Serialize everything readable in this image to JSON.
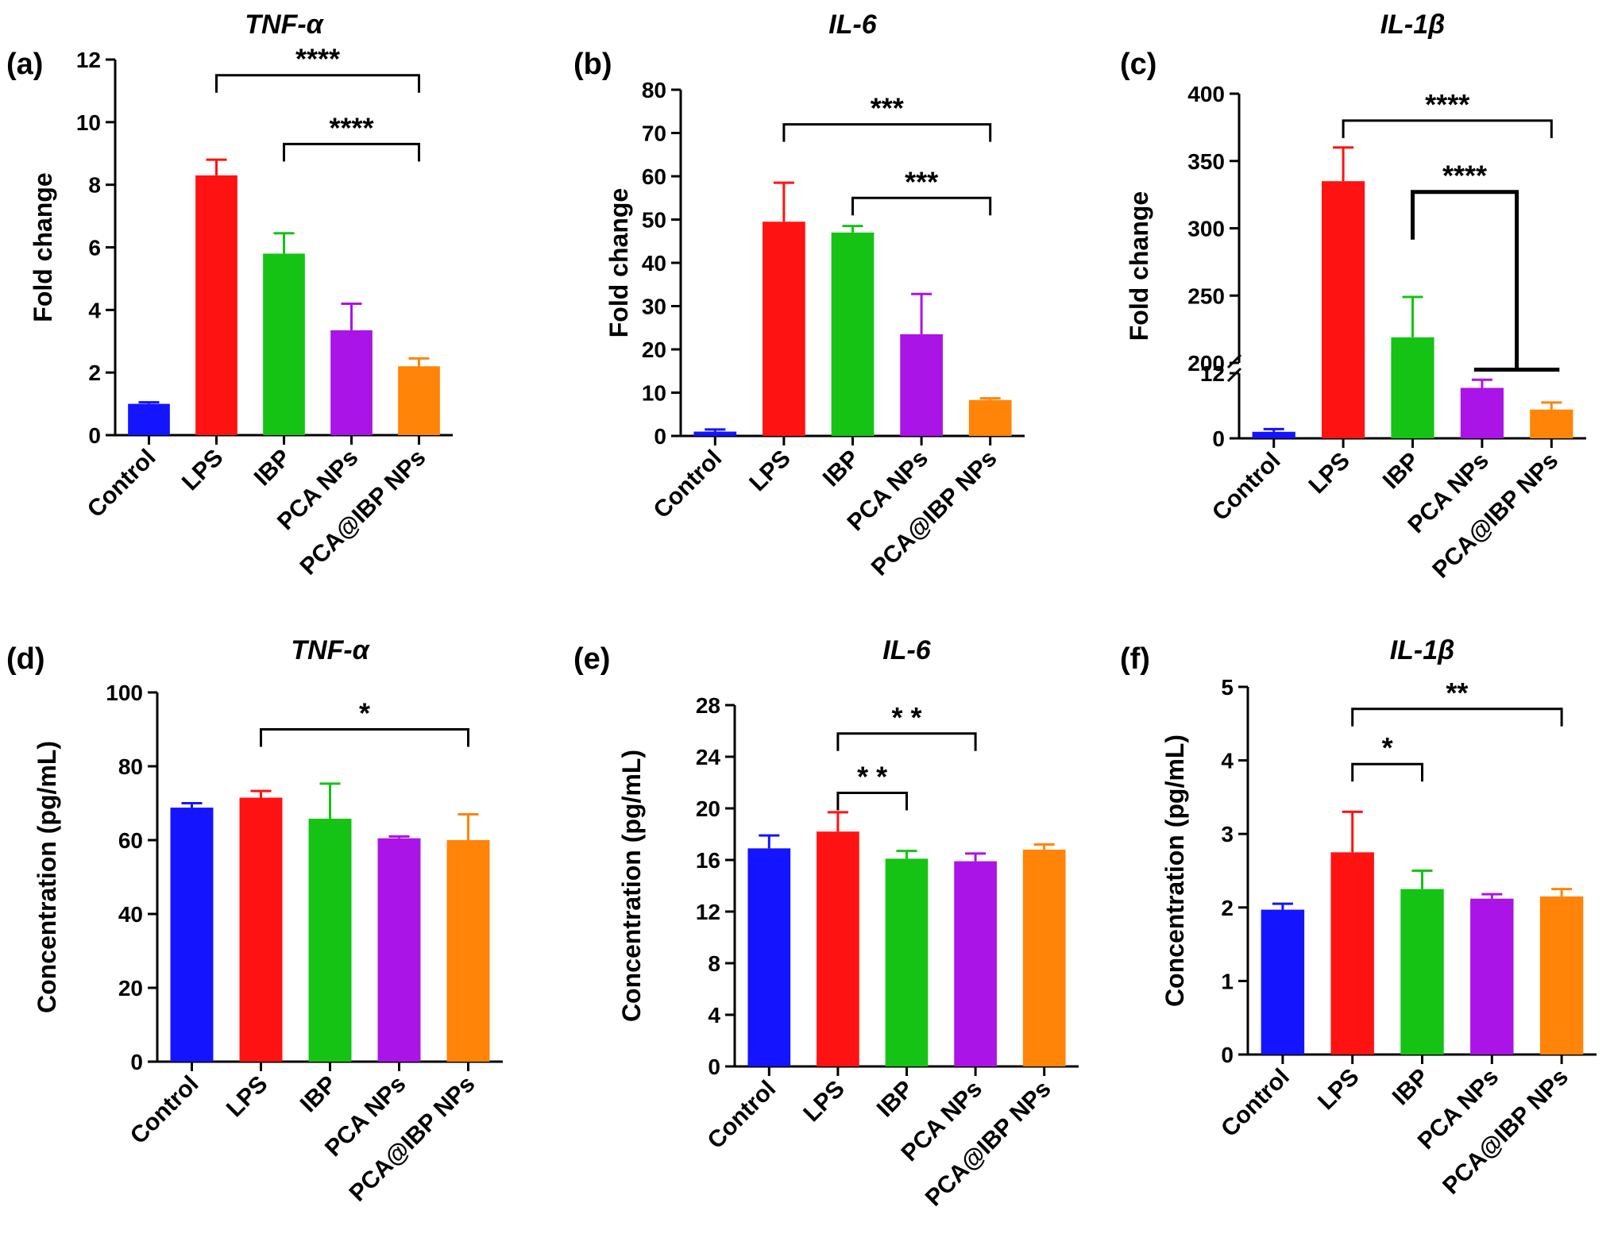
{
  "figure": {
    "colors": {
      "Control": "#1414ff",
      "LPS": "#ff1212",
      "IBP": "#15c315",
      "PCA NPs": "#aa14e6",
      "PCA@IBP NPs": "#ff8407"
    }
  },
  "chart_data": [
    {
      "type": "bar",
      "panel_label": "(a)",
      "title": "TNF-α",
      "xlabel": "",
      "ylabel": "Fold change",
      "categories": [
        "Control",
        "LPS",
        "IBP",
        "PCA NPs",
        "PCA@IBP NPs"
      ],
      "values": [
        1.0,
        8.3,
        5.8,
        3.35,
        2.2
      ],
      "errors": [
        0.05,
        0.5,
        0.65,
        0.85,
        0.25
      ],
      "ylim": [
        0,
        12
      ],
      "yticks": [
        0,
        2,
        4,
        6,
        8,
        10,
        12
      ],
      "significance": [
        {
          "from": "LPS",
          "to": "PCA@IBP NPs",
          "label": "****",
          "y": 11.5
        },
        {
          "from": "IBP",
          "to": "PCA@IBP NPs",
          "label": "****",
          "y": 9.3
        }
      ]
    },
    {
      "type": "bar",
      "panel_label": "(b)",
      "title": "IL-6",
      "xlabel": "",
      "ylabel": "Fold change",
      "categories": [
        "Control",
        "LPS",
        "IBP",
        "PCA NPs",
        "PCA@IBP NPs"
      ],
      "values": [
        1.0,
        49.5,
        47.0,
        23.5,
        8.3
      ],
      "errors": [
        0.5,
        9.0,
        1.5,
        9.3,
        0.4
      ],
      "ylim": [
        0,
        80
      ],
      "yticks": [
        0,
        10,
        20,
        30,
        40,
        50,
        60,
        70,
        80
      ],
      "significance": [
        {
          "from": "LPS",
          "to": "PCA@IBP NPs",
          "label": "***",
          "y": 72
        },
        {
          "from": "IBP",
          "to": "PCA@IBP NPs",
          "label": "***",
          "y": 55
        }
      ]
    },
    {
      "type": "bar",
      "panel_label": "(c)",
      "title": "IL-1β",
      "xlabel": "",
      "ylabel": "Fold change",
      "categories": [
        "Control",
        "LPS",
        "IBP",
        "PCA NPs",
        "PCA@IBP NPs"
      ],
      "values": [
        1.2,
        335,
        219,
        9.3,
        5.3
      ],
      "errors": [
        0.5,
        25,
        30,
        1.5,
        1.3
      ],
      "axis_break": {
        "lower_range": [
          0,
          12
        ],
        "upper_range": [
          200,
          400
        ]
      },
      "yticks_lower": [
        0,
        12
      ],
      "yticks_upper": [
        200,
        250,
        300,
        350,
        400
      ],
      "significance": [
        {
          "from": "LPS",
          "to": "PCA@IBP NPs",
          "label": "****",
          "y": 380
        },
        {
          "from": "IBP",
          "to": "PCA@IBP NPs",
          "label": "****",
          "y": 327
        }
      ]
    },
    {
      "type": "bar",
      "panel_label": "(d)",
      "title": "TNF-α",
      "xlabel": "",
      "ylabel": "Concentration (pg/mL)",
      "categories": [
        "Control",
        "LPS",
        "IBP",
        "PCA NPs",
        "PCA@IBP NPs"
      ],
      "values": [
        68.8,
        71.5,
        65.8,
        60.5,
        60.0
      ],
      "errors": [
        1.2,
        1.8,
        9.5,
        0.5,
        7.0
      ],
      "ylim": [
        0,
        100
      ],
      "yticks": [
        0,
        20,
        40,
        60,
        80,
        100
      ],
      "significance": [
        {
          "from": "LPS",
          "to": "PCA@IBP NPs",
          "label": "*",
          "y": 90
        }
      ]
    },
    {
      "type": "bar",
      "panel_label": "(e)",
      "title": "IL-6",
      "xlabel": "",
      "ylabel": "Concentration (pg/mL)",
      "categories": [
        "Control",
        "LPS",
        "IBP",
        "PCA NPs",
        "PCA@IBP NPs"
      ],
      "values": [
        16.9,
        18.2,
        16.1,
        15.9,
        16.8
      ],
      "errors": [
        1.0,
        1.5,
        0.6,
        0.6,
        0.4
      ],
      "ylim": [
        0,
        28
      ],
      "yticks": [
        0,
        4,
        8,
        12,
        16,
        20,
        24,
        28
      ],
      "significance": [
        {
          "from": "LPS",
          "to": "PCA NPs",
          "label": "* *",
          "y": 25.8
        },
        {
          "from": "LPS",
          "to": "IBP",
          "label": "* *",
          "y": 21.2
        }
      ]
    },
    {
      "type": "bar",
      "panel_label": "(f)",
      "title": "IL-1β",
      "xlabel": "",
      "ylabel": "Concentration (pg/mL)",
      "categories": [
        "Control",
        "LPS",
        "IBP",
        "PCA NPs",
        "PCA@IBP NPs"
      ],
      "values": [
        1.97,
        2.75,
        2.25,
        2.12,
        2.15
      ],
      "errors": [
        0.08,
        0.55,
        0.25,
        0.06,
        0.1
      ],
      "ylim": [
        0,
        5
      ],
      "yticks": [
        0,
        1,
        2,
        3,
        4,
        5
      ],
      "significance": [
        {
          "from": "LPS",
          "to": "PCA@IBP NPs",
          "label": "**",
          "y": 4.7
        },
        {
          "from": "LPS",
          "to": "IBP",
          "label": "*",
          "y": 3.95
        }
      ]
    }
  ]
}
